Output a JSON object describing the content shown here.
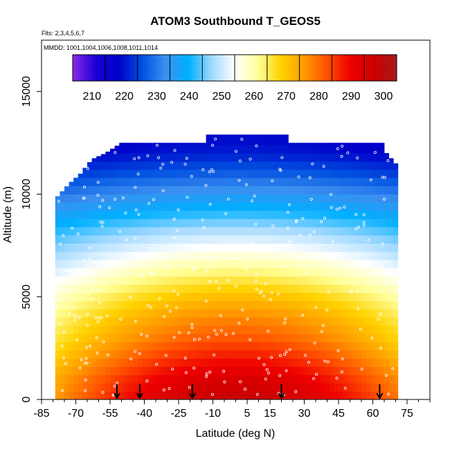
{
  "chart_data": {
    "type": "heatmap",
    "title": "ATOM3 Southbound T_GEOS5",
    "flights_note": "Flts: 2,3,4,5,6,7",
    "dates_note": "MMDD: 1001,1004,1006,1008,1011,1014",
    "xlabel": "Latitude (deg N)",
    "ylabel": "Altitude (m)",
    "xlim": [
      -85,
      85
    ],
    "ylim": [
      0,
      17500
    ],
    "x_ticks": [
      -85,
      -70,
      -55,
      -40,
      -25,
      -10,
      5,
      15,
      30,
      45,
      60,
      75
    ],
    "y_ticks": [
      0,
      5000,
      10000,
      15000
    ],
    "colorbar": {
      "range": [
        200,
        300
      ],
      "ticks": [
        210,
        220,
        230,
        240,
        250,
        260,
        270,
        280,
        290,
        300
      ],
      "colors": [
        "#8a2be2",
        "#1a00d6",
        "#0000c8",
        "#0050e0",
        "#3b8ff0",
        "#00b0ff",
        "#9fd8ff",
        "#ffffff",
        "#ffff9a",
        "#ffd200",
        "#ff9a00",
        "#ff5000",
        "#ee0000",
        "#cc0000",
        "#a61a1a"
      ]
    },
    "vertical_profile": [
      {
        "alt": 0,
        "t": 294
      },
      {
        "alt": 1000,
        "t": 290
      },
      {
        "alt": 2000,
        "t": 284
      },
      {
        "alt": 3000,
        "t": 278
      },
      {
        "alt": 4000,
        "t": 273
      },
      {
        "alt": 5000,
        "t": 267
      },
      {
        "alt": 6000,
        "t": 260
      },
      {
        "alt": 7000,
        "t": 253
      },
      {
        "alt": 8000,
        "t": 246
      },
      {
        "alt": 9000,
        "t": 238
      },
      {
        "alt": 10000,
        "t": 230
      },
      {
        "alt": 11000,
        "t": 222
      },
      {
        "alt": 12000,
        "t": 215
      },
      {
        "alt": 13000,
        "t": 212
      }
    ],
    "coverage": [
      {
        "lat": -85,
        "top": 0
      },
      {
        "lat": -80,
        "top": 0
      },
      {
        "lat": -78,
        "top": 9900
      },
      {
        "lat": -73,
        "top": 10500
      },
      {
        "lat": -68,
        "top": 11000
      },
      {
        "lat": -63,
        "top": 11700
      },
      {
        "lat": -57,
        "top": 12000
      },
      {
        "lat": -50,
        "top": 12500
      },
      {
        "lat": -12,
        "top": 12500
      },
      {
        "lat": -12,
        "top": 12900
      },
      {
        "lat": 24,
        "top": 12900
      },
      {
        "lat": 24,
        "top": 12500
      },
      {
        "lat": 64,
        "top": 12500
      },
      {
        "lat": 66,
        "top": 12000
      },
      {
        "lat": 70,
        "top": 11500
      },
      {
        "lat": 71,
        "top": 10000
      },
      {
        "lat": 72,
        "top": 5000
      },
      {
        "lat": 72,
        "top": 0
      }
    ],
    "profile_arrows_lat": [
      -52,
      -42,
      -19,
      20,
      63
    ]
  }
}
